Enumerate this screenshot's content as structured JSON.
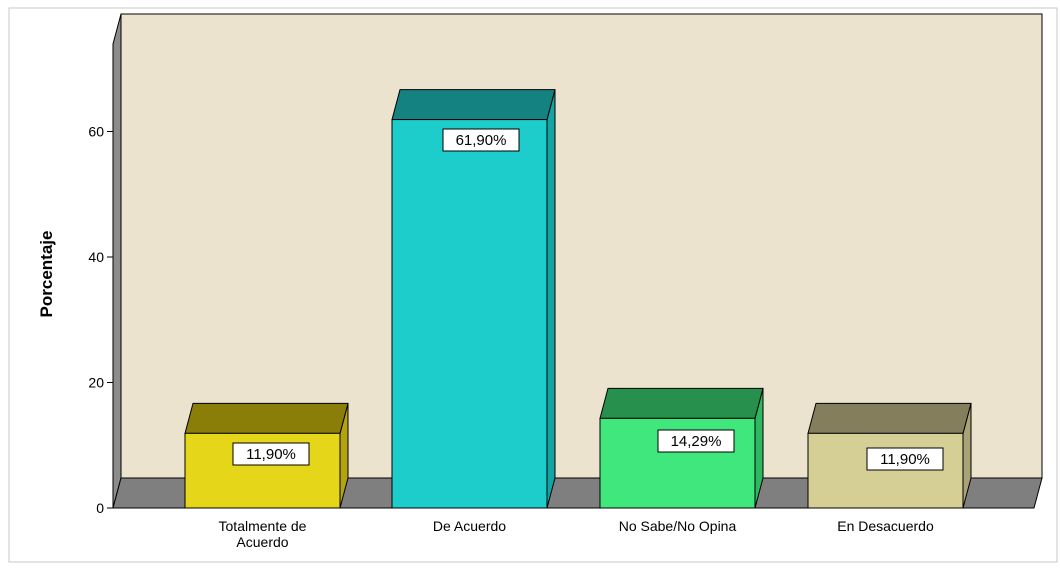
{
  "chart_data": {
    "type": "bar",
    "categories": [
      {
        "lines": [
          "Totalmente de",
          "Acuerdo"
        ]
      },
      {
        "lines": [
          "De Acuerdo"
        ]
      },
      {
        "lines": [
          "No Sabe/No Opina"
        ]
      },
      {
        "lines": [
          "En Desacuerdo"
        ]
      }
    ],
    "values": [
      11.9,
      61.9,
      14.29,
      11.9
    ],
    "data_labels": [
      "11,90%",
      "61,90%",
      "14,29%",
      "11,90%"
    ],
    "ylabel": "Porcentaje",
    "yticks": [
      0,
      20,
      40,
      60
    ],
    "ylim": [
      0,
      75
    ],
    "three_d": true,
    "colors": {
      "wall": "#ece3cf",
      "floor": "#7f7f7f",
      "bars": [
        {
          "front": "#e6d619",
          "top": "#8a7d08",
          "side": "#b3a40f"
        },
        {
          "front": "#1ccdcc",
          "top": "#138281",
          "side": "#14a4a3"
        },
        {
          "front": "#3fe77c",
          "top": "#27904c",
          "side": "#2eb862"
        },
        {
          "front": "#d5cf96",
          "top": "#857e5d",
          "side": "#a9a276"
        }
      ]
    }
  }
}
